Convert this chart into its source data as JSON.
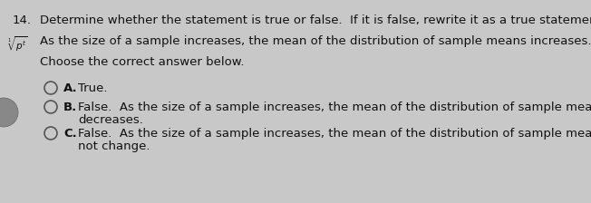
{
  "background_color": "#c8c8c8",
  "text_color": "#111111",
  "question_number": "14.",
  "question_header": "Determine whether the statement is true or false.  If it is false, rewrite it as a true statement.",
  "statement": "As the size of a sample increases, the mean of the distribution of sample means increases.",
  "choose_text": "Choose the correct answer below.",
  "option_a_label": "A.",
  "option_a_text": "True.",
  "option_b_label": "B.",
  "option_b_line1": "False.  As the size of a sample increases, the mean of the distribution of sample means",
  "option_b_line2": "decreases.",
  "option_c_label": "C.",
  "option_c_line1": "False.  As the size of a sample increases, the mean of the distribution of sample means does",
  "option_c_line2": "not change.",
  "font_size": 9.5,
  "font_size_bold_label": 9.5
}
